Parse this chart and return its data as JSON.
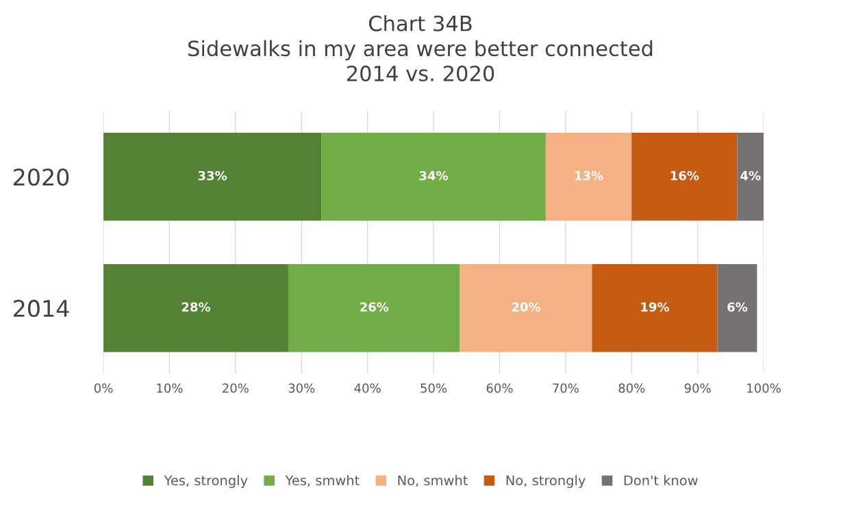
{
  "chart_data": {
    "type": "bar",
    "orientation": "horizontal",
    "stacked": true,
    "title": "Chart 34B\nSidewalks in my area were better connected\n2014 vs. 2020",
    "categories": [
      "2020",
      "2014"
    ],
    "series": [
      {
        "name": "Yes, strongly",
        "color": "#548235",
        "values": [
          33,
          28
        ],
        "value_labels": [
          "33%",
          "28%"
        ]
      },
      {
        "name": "Yes, smwht",
        "color": "#70ad47",
        "values": [
          34,
          26
        ],
        "value_labels": [
          "34%",
          "26%"
        ]
      },
      {
        "name": "No, smwht",
        "color": "#f4b183",
        "values": [
          13,
          20
        ],
        "value_labels": [
          "13%",
          "20%"
        ]
      },
      {
        "name": "No, strongly",
        "color": "#c55a11",
        "values": [
          16,
          19
        ],
        "value_labels": [
          "16%",
          "19%"
        ]
      },
      {
        "name": "Don't know",
        "color": "#767171",
        "values": [
          4,
          6
        ],
        "value_labels": [
          "4%",
          "6%"
        ]
      }
    ],
    "xlim": [
      0,
      100
    ],
    "xticks": [
      {
        "value": 0,
        "label": "0%"
      },
      {
        "value": 10,
        "label": "10%"
      },
      {
        "value": 20,
        "label": "20%"
      },
      {
        "value": 30,
        "label": "30%"
      },
      {
        "value": 40,
        "label": "40%"
      },
      {
        "value": 50,
        "label": "50%"
      },
      {
        "value": 60,
        "label": "60%"
      },
      {
        "value": 70,
        "label": "70%"
      },
      {
        "value": 80,
        "label": "80%"
      },
      {
        "value": 90,
        "label": "90%"
      },
      {
        "value": 100,
        "label": "100%"
      }
    ],
    "grid": "x",
    "legend": "bottom"
  }
}
